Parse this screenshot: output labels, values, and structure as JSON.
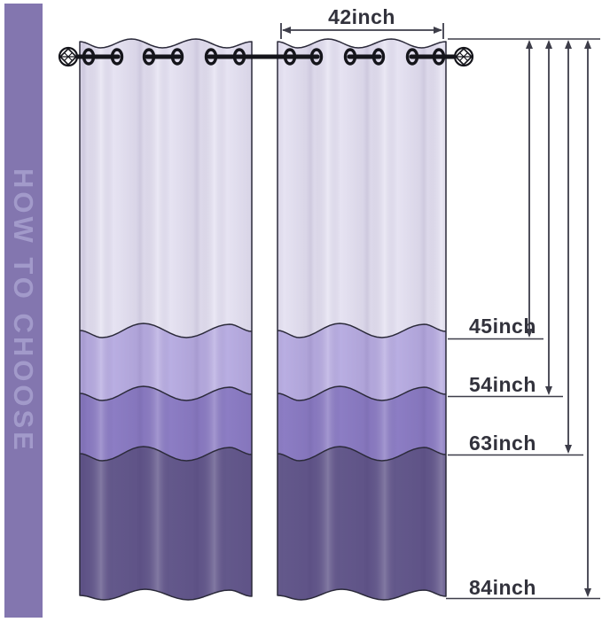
{
  "page": {
    "background": "#ffffff"
  },
  "sidebar": {
    "title": "HOW TO CHOOSE",
    "background": "#8376af",
    "text_color": "#a29aca"
  },
  "measurements": {
    "width": {
      "label": "42inch",
      "value": 42,
      "unit": "inch"
    },
    "lengths": [
      {
        "label": "45inch",
        "value": 45,
        "unit": "inch"
      },
      {
        "label": "54inch",
        "value": 54,
        "unit": "inch"
      },
      {
        "label": "63inch",
        "value": 63,
        "unit": "inch"
      },
      {
        "label": "84inch",
        "value": 84,
        "unit": "inch"
      }
    ]
  },
  "curtain": {
    "panels": 2,
    "grommets_per_panel": 6,
    "band_colors": [
      "#e6e3f2",
      "#b9aee2",
      "#8c7dc4",
      "#63588b"
    ],
    "outline_color": "#2b2a3a",
    "rod_color": "#15151b",
    "dimension_color": "#3d3d49",
    "label_color": "#32323c"
  }
}
